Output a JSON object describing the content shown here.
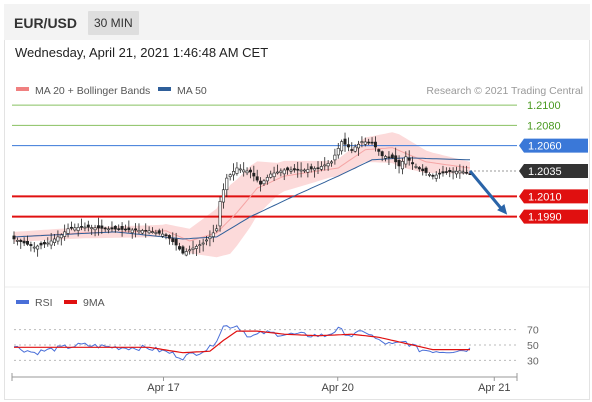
{
  "header": {
    "pair": "EUR/USD",
    "timeframe": "30 MIN"
  },
  "timestamp": "Wednesday, April 21, 2021 1:46:48 AM CET",
  "colors": {
    "ma20": "#f08080",
    "ma50": "#2f5f9a",
    "rsi": "#4a6fd8",
    "rsi_ma": "#e01010",
    "resistance": "#88c060",
    "pivot": "#3a78d8",
    "support": "#e01010",
    "price": "#333333",
    "bull": "#ffffff",
    "bear": "#222222",
    "arrow": "#2a64a8"
  },
  "chart_data": {
    "type": "candlestick",
    "title": "EUR/USD",
    "legend": [
      {
        "name": "MA 20 + Bollinger Bands",
        "color": "#f08080"
      },
      {
        "name": "MA 50",
        "color": "#2f5f9a"
      }
    ],
    "credit": "Research © 2021 Trading Central",
    "ylim": [
      1.1965,
      1.2105
    ],
    "x_ticks": [
      {
        "label": "Apr 17",
        "at": 0.3
      },
      {
        "label": "Apr 20",
        "at": 0.645
      },
      {
        "label": "Apr 21",
        "at": 0.955
      }
    ],
    "levels": [
      {
        "value": 1.21,
        "label": "1.2100",
        "kind": "resistance"
      },
      {
        "value": 1.208,
        "label": "1.2080",
        "kind": "resistance"
      },
      {
        "value": 1.206,
        "label": "1.2060",
        "kind": "pivot"
      },
      {
        "value": 1.2035,
        "label": "1.2035",
        "kind": "price"
      },
      {
        "value": 1.201,
        "label": "1.2010",
        "kind": "support"
      },
      {
        "value": 1.199,
        "label": "1.1990",
        "kind": "support"
      }
    ],
    "price_keypoints": [
      [
        0,
        1.1968
      ],
      [
        6,
        1.196
      ],
      [
        10,
        1.1964
      ],
      [
        14,
        1.1972
      ],
      [
        16,
        1.1978
      ],
      [
        20,
        1.198
      ],
      [
        28,
        1.1978
      ],
      [
        34,
        1.1977
      ],
      [
        40,
        1.1976
      ],
      [
        45,
        1.1972
      ],
      [
        48,
        1.1962
      ],
      [
        50,
        1.1954
      ],
      [
        53,
        1.1959
      ],
      [
        56,
        1.1964
      ],
      [
        58,
        1.197
      ],
      [
        60,
        1.1978
      ],
      [
        61,
        1.2005
      ],
      [
        63,
        1.2028
      ],
      [
        66,
        1.2038
      ],
      [
        70,
        1.2034
      ],
      [
        73,
        1.2022
      ],
      [
        76,
        1.2032
      ],
      [
        80,
        1.2036
      ],
      [
        86,
        1.2036
      ],
      [
        90,
        1.2038
      ],
      [
        94,
        1.2044
      ],
      [
        97,
        1.2064
      ],
      [
        100,
        1.2056
      ],
      [
        103,
        1.2064
      ],
      [
        106,
        1.2063
      ],
      [
        109,
        1.205
      ],
      [
        112,
        1.2048
      ],
      [
        114,
        1.204
      ],
      [
        116,
        1.2049
      ],
      [
        118,
        1.2042
      ],
      [
        120,
        1.2037
      ],
      [
        124,
        1.203
      ],
      [
        128,
        1.2034
      ],
      [
        132,
        1.2035
      ],
      [
        135,
        1.2032
      ]
    ],
    "ma20_keypoints": [
      [
        0,
        1.197
      ],
      [
        20,
        1.1974
      ],
      [
        45,
        1.1976
      ],
      [
        52,
        1.1966
      ],
      [
        60,
        1.1974
      ],
      [
        66,
        1.1994
      ],
      [
        72,
        1.2018
      ],
      [
        80,
        1.203
      ],
      [
        96,
        1.2038
      ],
      [
        104,
        1.2056
      ],
      [
        112,
        1.2058
      ],
      [
        122,
        1.2044
      ],
      [
        135,
        1.2038
      ]
    ],
    "ma50_keypoints": [
      [
        0,
        1.197
      ],
      [
        30,
        1.1975
      ],
      [
        50,
        1.1968
      ],
      [
        60,
        1.197
      ],
      [
        70,
        1.199
      ],
      [
        84,
        1.2012
      ],
      [
        96,
        1.203
      ],
      [
        106,
        1.2046
      ],
      [
        116,
        1.2048
      ],
      [
        135,
        1.2046
      ]
    ],
    "band_width_keypoints": [
      [
        0,
        0.0005
      ],
      [
        44,
        0.0006
      ],
      [
        52,
        0.0012
      ],
      [
        60,
        0.0024
      ],
      [
        64,
        0.0034
      ],
      [
        70,
        0.003
      ],
      [
        78,
        0.0016
      ],
      [
        94,
        0.0008
      ],
      [
        104,
        0.0012
      ],
      [
        114,
        0.0016
      ],
      [
        124,
        0.001
      ],
      [
        135,
        0.0006
      ]
    ],
    "forecast_arrow": {
      "from": [
        135,
        1.2035
      ],
      "to": [
        146,
        1.1992
      ]
    },
    "rsi": {
      "legend": [
        {
          "name": "RSI",
          "color": "#4a6fd8"
        },
        {
          "name": "9MA",
          "color": "#e01010"
        }
      ],
      "ylim": [
        15,
        85
      ],
      "levels": [
        {
          "value": 70,
          "label": "70"
        },
        {
          "value": 50,
          "label": "50"
        },
        {
          "value": 30,
          "label": "30"
        }
      ],
      "rsi_keypoints": [
        [
          0,
          48
        ],
        [
          6,
          40
        ],
        [
          12,
          45
        ],
        [
          20,
          50
        ],
        [
          30,
          47
        ],
        [
          40,
          46
        ],
        [
          46,
          40
        ],
        [
          50,
          34
        ],
        [
          54,
          40
        ],
        [
          58,
          46
        ],
        [
          60,
          58
        ],
        [
          62,
          74
        ],
        [
          66,
          75
        ],
        [
          70,
          60
        ],
        [
          74,
          66
        ],
        [
          80,
          64
        ],
        [
          86,
          63
        ],
        [
          92,
          62
        ],
        [
          96,
          70
        ],
        [
          100,
          62
        ],
        [
          104,
          68
        ],
        [
          108,
          55
        ],
        [
          112,
          50
        ],
        [
          116,
          54
        ],
        [
          120,
          44
        ],
        [
          126,
          42
        ],
        [
          132,
          43
        ],
        [
          135,
          45
        ]
      ],
      "ma_keypoints": [
        [
          0,
          47
        ],
        [
          20,
          47
        ],
        [
          40,
          47
        ],
        [
          50,
          40
        ],
        [
          58,
          42
        ],
        [
          62,
          56
        ],
        [
          66,
          68
        ],
        [
          72,
          68
        ],
        [
          80,
          64
        ],
        [
          90,
          62
        ],
        [
          100,
          64
        ],
        [
          108,
          60
        ],
        [
          116,
          52
        ],
        [
          124,
          44
        ],
        [
          135,
          44
        ]
      ]
    }
  }
}
